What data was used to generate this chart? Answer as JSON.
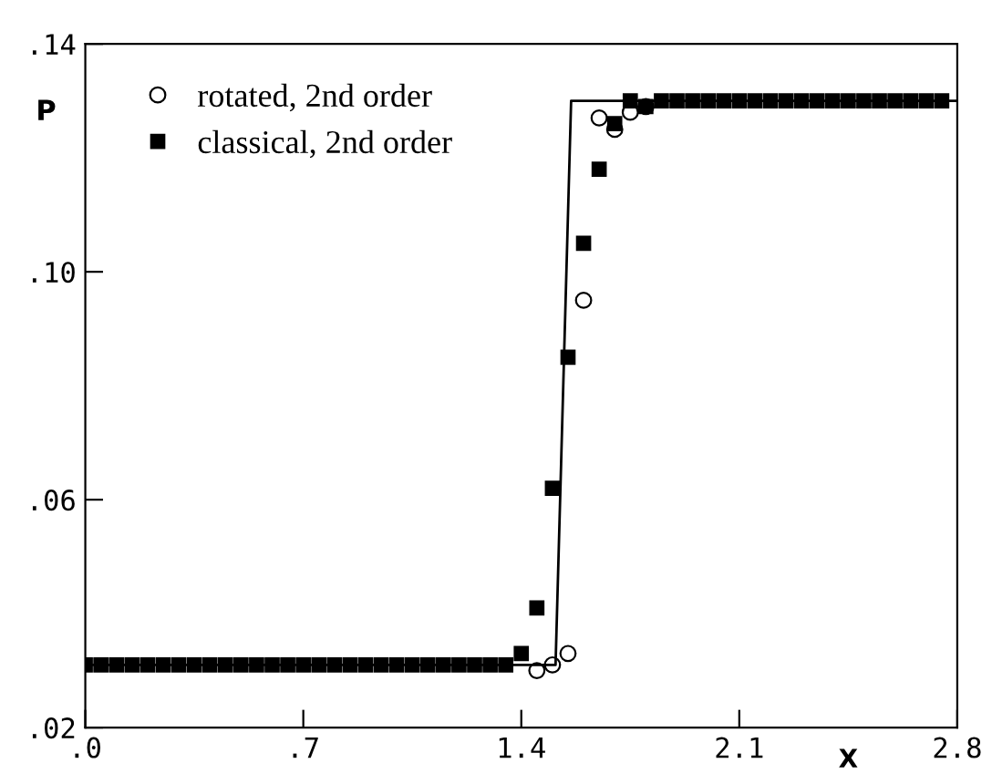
{
  "chart_data": {
    "type": "line",
    "xlabel": "X",
    "ylabel": "P",
    "xlim": [
      0,
      2.8
    ],
    "ylim": [
      0.02,
      0.14
    ],
    "xticks": [
      {
        "value": 0,
        "label": ".0"
      },
      {
        "value": 0.7,
        "label": ".7"
      },
      {
        "value": 1.4,
        "label": "1.4"
      },
      {
        "value": 2.1,
        "label": "2.1"
      },
      {
        "value": 2.8,
        "label": "2.8"
      }
    ],
    "yticks": [
      {
        "value": 0.02,
        "label": ".02"
      },
      {
        "value": 0.06,
        "label": ".06"
      },
      {
        "value": 0.1,
        "label": ".10"
      },
      {
        "value": 0.14,
        "label": ".14"
      }
    ],
    "grid": false,
    "legend": "top left",
    "series": [
      {
        "color": "#000000",
        "marker": "none",
        "line_style": "solid",
        "x": [
          0,
          1.51,
          1.56,
          2.8
        ],
        "values": [
          0.031,
          0.031,
          0.13,
          0.13
        ]
      },
      {
        "name": "rotated, 2nd order",
        "type": "scatter",
        "marker": "circle",
        "color": "#000000",
        "x": [
          1.45,
          1.5,
          1.55,
          1.6,
          1.65,
          1.7,
          1.75,
          1.8
        ],
        "values": [
          0.03,
          0.031,
          0.033,
          0.095,
          0.127,
          0.125,
          0.128,
          0.129
        ]
      },
      {
        "name": "classical, 2nd order",
        "type": "scatter",
        "marker": "square",
        "color": "#000000",
        "x": [
          0,
          0.05,
          0.1,
          0.15,
          0.2,
          0.25,
          0.3,
          0.35,
          0.4,
          0.45,
          0.5,
          0.55,
          0.6,
          0.65,
          0.7,
          0.75,
          0.8,
          0.85,
          0.9,
          0.95,
          1.0,
          1.05,
          1.1,
          1.15,
          1.2,
          1.25,
          1.3,
          1.35,
          1.4,
          1.45,
          1.5,
          1.55,
          1.6,
          1.65,
          1.7,
          1.75,
          1.8,
          1.85,
          1.9,
          1.95,
          2.0,
          2.05,
          2.1,
          2.15,
          2.2,
          2.25,
          2.3,
          2.35,
          2.4,
          2.45,
          2.5,
          2.55,
          2.6,
          2.65,
          2.7,
          2.75
        ],
        "values": [
          0.031,
          0.031,
          0.031,
          0.031,
          0.031,
          0.031,
          0.031,
          0.031,
          0.031,
          0.031,
          0.031,
          0.031,
          0.031,
          0.031,
          0.031,
          0.031,
          0.031,
          0.031,
          0.031,
          0.031,
          0.031,
          0.031,
          0.031,
          0.031,
          0.031,
          0.031,
          0.031,
          0.031,
          0.033,
          0.041,
          0.062,
          0.085,
          0.105,
          0.118,
          0.126,
          0.13,
          0.129,
          0.13,
          0.13,
          0.13,
          0.13,
          0.13,
          0.13,
          0.13,
          0.13,
          0.13,
          0.13,
          0.13,
          0.13,
          0.13,
          0.13,
          0.13,
          0.13,
          0.13,
          0.13,
          0.13
        ]
      }
    ]
  }
}
